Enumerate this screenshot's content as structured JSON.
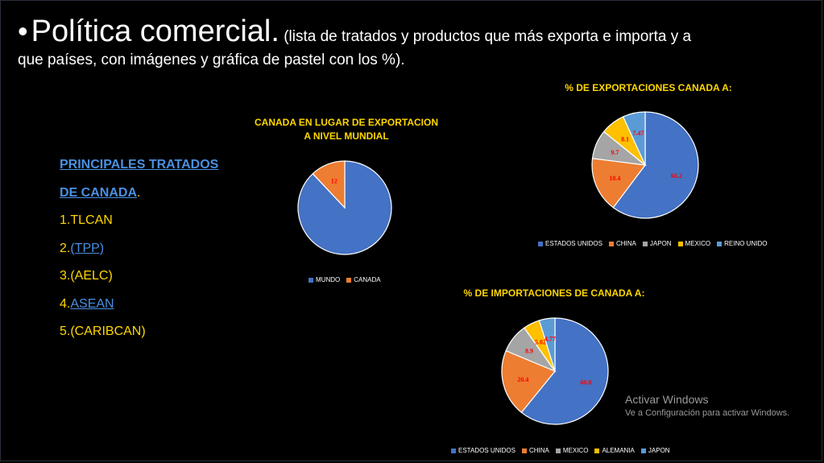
{
  "title": {
    "bullet": "•",
    "main": "Política comercial.",
    "sub": " (lista de tratados y productos que más exporta e importa y a",
    "sub2": "que países, con imágenes y gráfica de pastel con los %)."
  },
  "treaties": {
    "heading1": "PRINCIPALES TRATADOS",
    "heading2": "DE CANADA",
    "heading2_dot": ".",
    "items": [
      {
        "prefix": "1.",
        "label": "TLCAN"
      },
      {
        "prefix": "2.",
        "label": "(TPP)"
      },
      {
        "prefix": "3.",
        "label": "(AELC)"
      },
      {
        "prefix": "4.",
        "label": "ASEAN"
      },
      {
        "prefix": "5.",
        "label": "(CARIBCAN)"
      }
    ]
  },
  "colors": {
    "blue": "#4472C4",
    "orange": "#ED7D31",
    "gray": "#A5A5A5",
    "yellow": "#FFC000",
    "lightblue": "#5B9BD5",
    "label_red": "#ff0000"
  },
  "chart_data": [
    {
      "type": "pie",
      "title": "CANADA EN LUGAR DE EXPORTACION A NIVEL MUNDIAL",
      "title_line1": "CANADA EN LUGAR DE EXPORTACION",
      "title_line2": "A NIVEL MUNDIAL",
      "categories": [
        "MUNDO",
        "CANADA"
      ],
      "values": [
        88,
        12
      ],
      "labels": [
        "",
        "12"
      ],
      "legend": [
        "MUNDO",
        "CANADA"
      ]
    },
    {
      "type": "pie",
      "title": "% DE EXPORTACIONES CANADA A:",
      "categories": [
        "ESTADOS UNIDOS",
        "CHINA",
        "JAPON",
        "MEXICO",
        "REINO UNIDO"
      ],
      "values": [
        66.2,
        18.4,
        9.7,
        8.1,
        7.47
      ],
      "labels": [
        "66.2",
        "18.4",
        "9.7",
        "8.1",
        "7.47"
      ],
      "legend": [
        "ESTADOS UNIDOS",
        "CHINA",
        "JAPON",
        "MEXICO",
        "REINO UNIDO"
      ]
    },
    {
      "type": "pie",
      "title": "% DE IMPORTACIONES DE CANADA A:",
      "categories": [
        "ESTADOS UNIDOS",
        "CHINA",
        "MEXICO",
        "ALEMANIA",
        "JAPON"
      ],
      "values": [
        60.8,
        20.4,
        8.9,
        5.02,
        4.77
      ],
      "labels": [
        "60.8",
        "20.4",
        "8.9",
        "5.02",
        "4.77"
      ],
      "legend": [
        "ESTADOS UNIDOS",
        "CHINA",
        "MEXICO",
        "ALEMANIA",
        "JAPON"
      ]
    }
  ],
  "watermark": {
    "line1": "Activar Windows",
    "line2": "Ve a Configuración para activar Windows."
  }
}
